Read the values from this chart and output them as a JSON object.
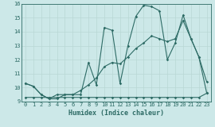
{
  "xlabel": "Humidex (Indice chaleur)",
  "bg_color": "#cce8e8",
  "line_color": "#2d6b65",
  "grid_color": "#b8d8d4",
  "xmin": 0,
  "xmax": 23,
  "ymin": 9,
  "ymax": 16,
  "series": [
    {
      "x": [
        0,
        1,
        2,
        3,
        4,
        5,
        6,
        7,
        8,
        9,
        10,
        11,
        12,
        13,
        14,
        15,
        16,
        17,
        18,
        19,
        20,
        21,
        22,
        23
      ],
      "y": [
        10.3,
        10.1,
        9.5,
        9.2,
        9.2,
        9.5,
        9.5,
        9.5,
        11.8,
        10.2,
        14.3,
        14.1,
        10.3,
        13.0,
        15.1,
        15.9,
        15.8,
        15.5,
        12.0,
        13.2,
        15.2,
        13.5,
        12.2,
        10.4
      ]
    },
    {
      "x": [
        0,
        1,
        2,
        3,
        4,
        5,
        6,
        7,
        8,
        9,
        10,
        11,
        12,
        13,
        14,
        15,
        16,
        17,
        18,
        19,
        20,
        21,
        22,
        23
      ],
      "y": [
        10.3,
        10.1,
        9.5,
        9.2,
        9.5,
        9.5,
        9.5,
        9.8,
        10.2,
        10.7,
        11.5,
        11.8,
        11.7,
        12.2,
        12.8,
        13.2,
        13.7,
        13.5,
        13.3,
        13.5,
        14.8,
        13.5,
        12.2,
        9.6
      ]
    },
    {
      "x": [
        0,
        1,
        2,
        3,
        4,
        5,
        6,
        7,
        8,
        9,
        10,
        11,
        12,
        13,
        14,
        15,
        16,
        17,
        18,
        19,
        20,
        21,
        22,
        23
      ],
      "y": [
        9.3,
        9.3,
        9.3,
        9.3,
        9.3,
        9.3,
        9.3,
        9.3,
        9.3,
        9.3,
        9.3,
        9.3,
        9.3,
        9.3,
        9.3,
        9.3,
        9.3,
        9.3,
        9.3,
        9.3,
        9.3,
        9.3,
        9.3,
        9.6
      ]
    }
  ]
}
